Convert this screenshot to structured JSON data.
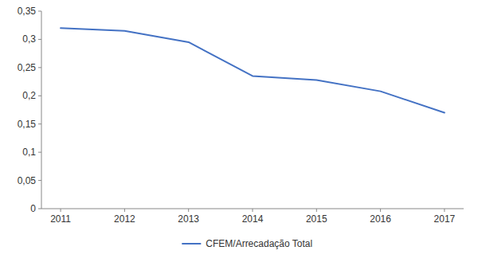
{
  "chart_data": {
    "type": "line",
    "x": [
      2011,
      2012,
      2013,
      2014,
      2015,
      2016,
      2017
    ],
    "series": [
      {
        "name": "CFEM/Arrecadação Total",
        "color": "#4472C4",
        "values": [
          0.32,
          0.315,
          0.295,
          0.235,
          0.228,
          0.208,
          0.17
        ]
      }
    ],
    "xlim": [
      2010.7,
      2017.3
    ],
    "xticks": [
      2011,
      2012,
      2013,
      2014,
      2015,
      2016,
      2017
    ],
    "ylim": [
      0,
      0.35
    ],
    "yticks": [
      0,
      {
        "value": 0.05,
        "label": "0,05"
      },
      {
        "value": 0.1,
        "label": "0,1"
      },
      {
        "value": 0.15,
        "label": "0,15"
      },
      {
        "value": 0.2,
        "label": "0,2"
      },
      {
        "value": 0.25,
        "label": "0,25"
      },
      {
        "value": 0.3,
        "label": "0,3"
      },
      {
        "value": 0.35,
        "label": "0,35"
      }
    ],
    "grid": false,
    "legend": "bottom"
  }
}
